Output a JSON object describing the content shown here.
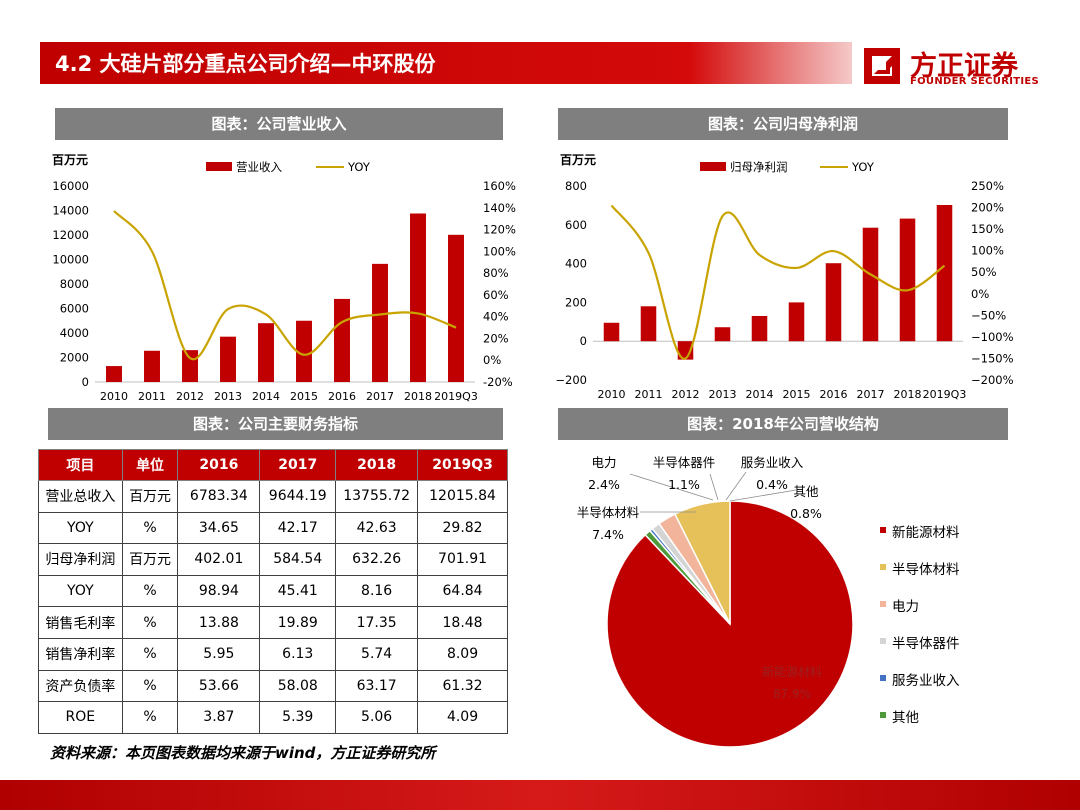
{
  "header": {
    "title": "4.2 大硅片部分重点公司介绍—中环股份"
  },
  "logo": {
    "cn": "方正证券",
    "en": "FOUNDER SECURITIES"
  },
  "colors": {
    "red": "#c00000",
    "gold": "#c9a400",
    "gray_title": "#7f7f7f"
  },
  "panels": {
    "revenue_title": "图表：公司营业收入",
    "profit_title": "图表：公司归母净利润",
    "table_title": "图表：公司主要财务指标",
    "pie_title": "图表：2018年公司营收结构"
  },
  "source": "资料来源：本页图表数据均来源于wind，方正证券研究所",
  "table": {
    "headers": [
      "项目",
      "单位",
      "2016",
      "2017",
      "2018",
      "2019Q3"
    ],
    "rows": [
      [
        "营业总收入",
        "百万元",
        "6783.34",
        "9644.19",
        "13755.72",
        "12015.84"
      ],
      [
        "YOY",
        "%",
        "34.65",
        "42.17",
        "42.63",
        "29.82"
      ],
      [
        "归母净利润",
        "百万元",
        "402.01",
        "584.54",
        "632.26",
        "701.91"
      ],
      [
        "YOY",
        "%",
        "98.94",
        "45.41",
        "8.16",
        "64.84"
      ],
      [
        "销售毛利率",
        "%",
        "13.88",
        "19.89",
        "17.35",
        "18.48"
      ],
      [
        "销售净利率",
        "%",
        "5.95",
        "6.13",
        "5.74",
        "8.09"
      ],
      [
        "资产负债率",
        "%",
        "53.66",
        "58.08",
        "63.17",
        "61.32"
      ],
      [
        "ROE",
        "%",
        "3.87",
        "5.39",
        "5.06",
        "4.09"
      ]
    ]
  },
  "chart_data": [
    {
      "type": "bar",
      "unit_label": "百万元",
      "categories": [
        "2010",
        "2011",
        "2012",
        "2013",
        "2014",
        "2015",
        "2016",
        "2017",
        "2018",
        "2019Q3"
      ],
      "series": [
        {
          "name": "营业收入",
          "type": "bar",
          "axis": "left",
          "color": "#c00000",
          "values": [
            1300,
            2550,
            2600,
            3700,
            4800,
            5000,
            6783,
            9644,
            13756,
            12016
          ]
        },
        {
          "name": "YOY",
          "type": "line",
          "axis": "right",
          "color": "#c9a400",
          "values": [
            137,
            100,
            2,
            47,
            42,
            5,
            35,
            42,
            43,
            30
          ]
        }
      ],
      "ylim_left": [
        0,
        16000
      ],
      "yticks_left": [
        "0",
        "2000",
        "4000",
        "6000",
        "8000",
        "10000",
        "12000",
        "14000",
        "16000"
      ],
      "ylim_right": [
        -20,
        160
      ],
      "yticks_right": [
        "-20%",
        "0%",
        "20%",
        "40%",
        "60%",
        "80%",
        "100%",
        "120%",
        "140%",
        "160%"
      ]
    },
    {
      "type": "bar",
      "unit_label": "百万元",
      "categories": [
        "2010",
        "2011",
        "2012",
        "2013",
        "2014",
        "2015",
        "2016",
        "2017",
        "2018",
        "2019Q3"
      ],
      "series": [
        {
          "name": "归母净利润",
          "type": "bar",
          "axis": "left",
          "color": "#c00000",
          "values": [
            95,
            180,
            -95,
            72,
            130,
            200,
            402,
            585,
            632,
            702
          ]
        },
        {
          "name": "YOY",
          "type": "line",
          "axis": "right",
          "color": "#c9a400",
          "values": [
            205,
            95,
            -150,
            180,
            90,
            60,
            99,
            45,
            8,
            65
          ]
        }
      ],
      "ylim_left": [
        -200,
        800
      ],
      "yticks_left": [
        "−200",
        "0",
        "200",
        "400",
        "600",
        "800"
      ],
      "ylim_right": [
        -200,
        250
      ],
      "yticks_right": [
        "−200%",
        "−150%",
        "−100%",
        "−50%",
        "0%",
        "50%",
        "100%",
        "150%",
        "200%",
        "250%"
      ]
    },
    {
      "type": "pie",
      "slices": [
        {
          "name": "新能源材料",
          "value": 87.9,
          "label": "新能源材料",
          "pct": "87.9%",
          "color": "#c00000"
        },
        {
          "name": "半导体材料",
          "value": 7.4,
          "label": "半导体材料",
          "pct": "7.4%",
          "color": "#e6c15a"
        },
        {
          "name": "电力",
          "value": 2.4,
          "label": "电力",
          "pct": "2.4%",
          "color": "#f2b49b"
        },
        {
          "name": "半导体器件",
          "value": 1.1,
          "label": "半导体器件",
          "pct": "1.1%",
          "color": "#d4d4d4"
        },
        {
          "name": "服务业收入",
          "value": 0.4,
          "label": "服务业收入",
          "pct": "0.4%",
          "color": "#4472c4"
        },
        {
          "name": "其他",
          "value": 0.8,
          "label": "其他",
          "pct": "0.8%",
          "color": "#4e9a3a"
        }
      ]
    }
  ]
}
